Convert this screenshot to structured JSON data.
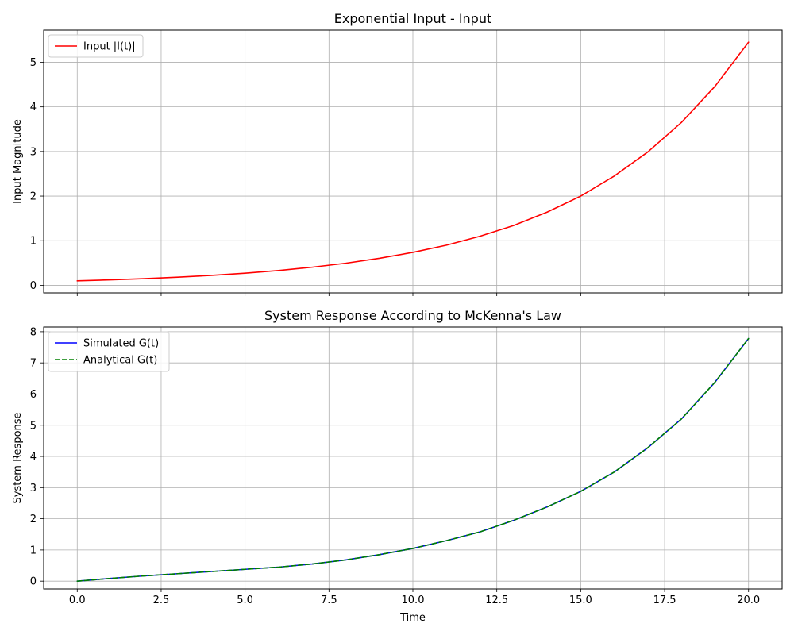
{
  "chart_data": [
    {
      "type": "line",
      "title": "Exponential Input - Input",
      "xlabel": "",
      "ylabel": "Input Magnitude",
      "xlim": [
        -1,
        21
      ],
      "ylim": [
        -0.17,
        5.72
      ],
      "x_ticks": [
        0,
        2.5,
        5,
        7.5,
        10,
        12.5,
        15,
        17.5,
        20
      ],
      "x_tick_labels_visible": false,
      "y_ticks": [
        0,
        1,
        2,
        3,
        4,
        5
      ],
      "y_tick_labels": [
        "0",
        "1",
        "2",
        "3",
        "4",
        "5"
      ],
      "grid": true,
      "legend_position": "top-left",
      "series": [
        {
          "name": "Input |I(t)|",
          "color": "#ff0000",
          "dash": "solid",
          "x": [
            0,
            1,
            2,
            3,
            4,
            5,
            6,
            7,
            8,
            9,
            10,
            11,
            12,
            13,
            14,
            15,
            16,
            17,
            18,
            19,
            20
          ],
          "y": [
            0.1,
            0.122,
            0.149,
            0.182,
            0.223,
            0.272,
            0.332,
            0.406,
            0.495,
            0.605,
            0.739,
            0.9,
            1.1,
            1.34,
            1.64,
            2.0,
            2.45,
            2.99,
            3.65,
            4.46,
            5.45
          ]
        }
      ]
    },
    {
      "type": "line",
      "title": "System Response According to McKenna's Law",
      "xlabel": "Time",
      "ylabel": "System Response",
      "xlim": [
        -1,
        21
      ],
      "ylim": [
        -0.25,
        8.15
      ],
      "x_ticks": [
        0,
        2.5,
        5,
        7.5,
        10,
        12.5,
        15,
        17.5,
        20
      ],
      "x_tick_labels": [
        "0.0",
        "2.5",
        "5.0",
        "7.5",
        "10.0",
        "12.5",
        "15.0",
        "17.5",
        "20.0"
      ],
      "y_ticks": [
        0,
        1,
        2,
        3,
        4,
        5,
        6,
        7,
        8
      ],
      "y_tick_labels": [
        "0",
        "1",
        "2",
        "3",
        "4",
        "5",
        "6",
        "7",
        "8"
      ],
      "grid": true,
      "legend_position": "top-left",
      "series": [
        {
          "name": "Simulated G(t)",
          "color": "#0000ff",
          "dash": "solid",
          "x": [
            0,
            1,
            2,
            3,
            4,
            5,
            6,
            7,
            8,
            9,
            10,
            11,
            12,
            13,
            14,
            15,
            16,
            17,
            18,
            19,
            20
          ],
          "y": [
            0.0,
            0.09,
            0.17,
            0.24,
            0.31,
            0.38,
            0.45,
            0.55,
            0.68,
            0.85,
            1.05,
            1.3,
            1.58,
            1.95,
            2.38,
            2.88,
            3.5,
            4.28,
            5.2,
            6.38,
            7.78
          ]
        },
        {
          "name": "Analytical G(t)",
          "color": "#008000",
          "dash": "dashed",
          "x": [
            0,
            1,
            2,
            3,
            4,
            5,
            6,
            7,
            8,
            9,
            10,
            11,
            12,
            13,
            14,
            15,
            16,
            17,
            18,
            19,
            20
          ],
          "y": [
            0.0,
            0.09,
            0.17,
            0.24,
            0.31,
            0.38,
            0.45,
            0.55,
            0.68,
            0.85,
            1.05,
            1.3,
            1.58,
            1.95,
            2.38,
            2.88,
            3.5,
            4.28,
            5.2,
            6.38,
            7.78
          ]
        }
      ]
    }
  ]
}
